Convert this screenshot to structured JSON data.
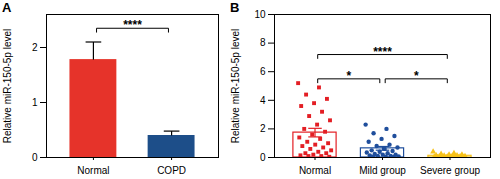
{
  "chart_data": [
    {
      "type": "bar",
      "title": "A",
      "categories": [
        "Normal",
        "COPD"
      ],
      "values": [
        1.78,
        0.4
      ],
      "errors": [
        0.32,
        0.08
      ],
      "colors": [
        "#e6332a",
        "#1d4e89"
      ],
      "y_label": "Relative miR-150-5p level",
      "ylim": [
        0,
        2.6
      ],
      "yticks": [
        0,
        1,
        2
      ],
      "brackets": [
        {
          "from": "Normal",
          "to": "COPD",
          "y": 2.35,
          "label": "****"
        }
      ]
    },
    {
      "type": "bar",
      "title": "B",
      "categories": [
        "Normal",
        "Mild group",
        "Severe group"
      ],
      "values": [
        1.74,
        0.64,
        0.12
      ],
      "errors": [
        0.3,
        0.13,
        0.03
      ],
      "colors": [
        "#e31e24",
        "#1f4e9c",
        "#f7c21a"
      ],
      "points": [
        [
          5.2,
          4.9,
          4.4,
          4.1,
          3.8,
          3.6,
          3.2,
          2.9,
          2.6,
          2.3,
          2.0,
          1.8,
          1.6,
          1.4,
          1.3,
          1.1,
          1.0,
          0.9,
          0.8,
          0.7,
          0.6,
          0.5,
          0.4,
          0.3,
          0.3,
          0.2,
          0.15,
          0.1,
          0.1,
          0.05
        ],
        [
          2.3,
          2.0,
          1.7,
          1.5,
          1.3,
          1.1,
          0.9,
          0.8,
          0.7,
          0.6,
          0.5,
          0.45,
          0.4,
          0.35,
          0.3,
          0.25,
          0.2,
          0.2,
          0.15,
          0.1,
          0.1,
          0.08,
          0.05,
          0.05,
          0.03
        ],
        [
          0.4,
          0.3,
          0.25,
          0.2,
          0.2,
          0.15,
          0.15,
          0.12,
          0.1,
          0.1,
          0.08,
          0.08,
          0.06,
          0.05,
          0.05,
          0.04,
          0.03,
          0.03,
          0.02,
          0.02
        ]
      ],
      "y_label": "Relative miR-150-5p level",
      "ylim": [
        0,
        10
      ],
      "yticks": [
        0,
        2,
        4,
        6,
        8,
        10
      ],
      "brackets": [
        {
          "from": "Normal",
          "to": "Severe group",
          "y": 7.2,
          "label": "****"
        },
        {
          "from": "Normal",
          "to": "Mild group",
          "y": 5.5,
          "label": "*"
        },
        {
          "from": "Mild group",
          "to": "Severe group",
          "y": 5.5,
          "label": "*"
        }
      ]
    }
  ]
}
